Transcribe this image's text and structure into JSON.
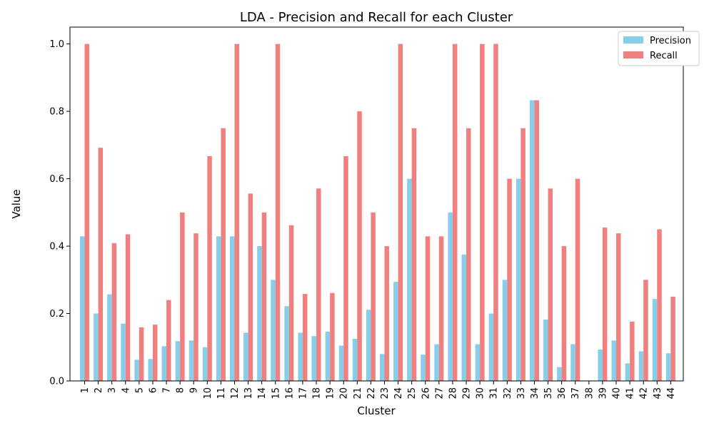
{
  "chart_data": {
    "type": "bar",
    "title": "LDA - Precision and Recall for each Cluster",
    "xlabel": "Cluster",
    "ylabel": "Value",
    "ylim": [
      0,
      1.05
    ],
    "yticks": [
      "0.0",
      "0.2",
      "0.4",
      "0.6",
      "0.8",
      "1.0"
    ],
    "categories": [
      "1",
      "2",
      "3",
      "4",
      "5",
      "6",
      "7",
      "8",
      "9",
      "10",
      "11",
      "12",
      "13",
      "14",
      "15",
      "16",
      "17",
      "18",
      "19",
      "20",
      "21",
      "22",
      "23",
      "24",
      "25",
      "26",
      "27",
      "28",
      "29",
      "30",
      "31",
      "32",
      "33",
      "34",
      "35",
      "36",
      "37",
      "38",
      "39",
      "40",
      "41",
      "42",
      "43",
      "44"
    ],
    "legend_position": "top-right",
    "grid": false,
    "series": [
      {
        "name": "Precision",
        "color": "#87ceeb",
        "values": [
          0.429,
          0.2,
          0.257,
          0.17,
          0.063,
          0.065,
          0.103,
          0.118,
          0.12,
          0.1,
          0.429,
          0.429,
          0.143,
          0.4,
          0.3,
          0.222,
          0.143,
          0.133,
          0.146,
          0.105,
          0.125,
          0.211,
          0.08,
          0.294,
          0.6,
          0.078,
          0.109,
          0.5,
          0.375,
          0.109,
          0.2,
          0.3,
          0.6,
          0.833,
          0.182,
          0.041,
          0.109,
          0.0,
          0.093,
          0.12,
          0.052,
          0.088,
          0.243,
          0.082
        ]
      },
      {
        "name": "Recall",
        "color": "#f08080",
        "values": [
          1.0,
          0.692,
          0.409,
          0.435,
          0.159,
          0.167,
          0.24,
          0.5,
          0.438,
          0.667,
          0.75,
          1.0,
          0.556,
          0.5,
          1.0,
          0.462,
          0.258,
          0.571,
          0.261,
          0.667,
          0.8,
          0.5,
          0.4,
          1.0,
          0.75,
          0.429,
          0.429,
          1.0,
          0.75,
          1.0,
          1.0,
          0.6,
          0.75,
          0.833,
          0.571,
          0.4,
          0.6,
          0.0,
          0.455,
          0.438,
          0.176,
          0.3,
          0.45,
          0.25
        ]
      }
    ]
  }
}
